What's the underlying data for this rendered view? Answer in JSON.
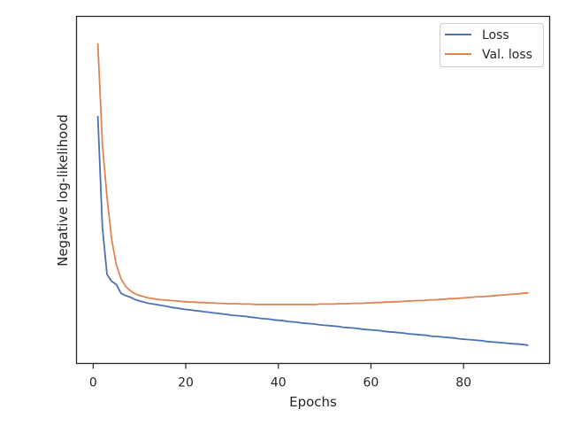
{
  "chart_data": {
    "type": "line",
    "title": "",
    "xlabel": "Epochs",
    "ylabel": "Negative log-likelihood",
    "xlim": [
      -3.6,
      98.6
    ],
    "ylim": [
      0.1,
      1.0
    ],
    "x_ticks": [
      0,
      20,
      40,
      60,
      80
    ],
    "y_ticks_shown": false,
    "grid": false,
    "legend_position": "top-right",
    "x": [
      1,
      2,
      3,
      4,
      5,
      6,
      7,
      8,
      9,
      10,
      11,
      12,
      13,
      14,
      15,
      16,
      17,
      18,
      19,
      20,
      21,
      22,
      23,
      24,
      25,
      26,
      27,
      28,
      29,
      30,
      31,
      32,
      33,
      34,
      35,
      36,
      37,
      38,
      39,
      40,
      41,
      42,
      43,
      44,
      45,
      46,
      47,
      48,
      49,
      50,
      51,
      52,
      53,
      54,
      55,
      56,
      57,
      58,
      59,
      60,
      61,
      62,
      63,
      64,
      65,
      66,
      67,
      68,
      69,
      70,
      71,
      72,
      73,
      74,
      75,
      76,
      77,
      78,
      79,
      80,
      81,
      82,
      83,
      84,
      85,
      86,
      87,
      88,
      89,
      90,
      91,
      92,
      93,
      94
    ],
    "series": [
      {
        "name": "Loss",
        "color": "#4c72b0",
        "values": [
          0.742,
          0.453,
          0.331,
          0.313,
          0.305,
          0.282,
          0.276,
          0.272,
          0.266,
          0.262,
          0.259,
          0.256,
          0.254,
          0.252,
          0.25,
          0.248,
          0.245,
          0.244,
          0.242,
          0.24,
          0.239,
          0.237,
          0.236,
          0.234,
          0.233,
          0.231,
          0.23,
          0.228,
          0.227,
          0.225,
          0.224,
          0.223,
          0.222,
          0.22,
          0.219,
          0.217,
          0.216,
          0.215,
          0.213,
          0.212,
          0.211,
          0.209,
          0.208,
          0.207,
          0.205,
          0.204,
          0.203,
          0.202,
          0.2,
          0.199,
          0.198,
          0.197,
          0.196,
          0.194,
          0.193,
          0.192,
          0.191,
          0.189,
          0.188,
          0.187,
          0.186,
          0.185,
          0.183,
          0.182,
          0.181,
          0.18,
          0.179,
          0.177,
          0.176,
          0.175,
          0.174,
          0.173,
          0.171,
          0.17,
          0.169,
          0.168,
          0.167,
          0.166,
          0.164,
          0.163,
          0.162,
          0.161,
          0.16,
          0.159,
          0.157,
          0.156,
          0.155,
          0.154,
          0.153,
          0.152,
          0.151,
          0.15,
          0.149,
          0.147
        ]
      },
      {
        "name": "Val. loss",
        "color": "#dd8452",
        "values": [
          0.93,
          0.668,
          0.531,
          0.421,
          0.356,
          0.32,
          0.3,
          0.289,
          0.281,
          0.276,
          0.273,
          0.27,
          0.268,
          0.266,
          0.265,
          0.264,
          0.263,
          0.262,
          0.261,
          0.26,
          0.259,
          0.259,
          0.258,
          0.258,
          0.257,
          0.257,
          0.256,
          0.256,
          0.255,
          0.255,
          0.255,
          0.254,
          0.254,
          0.254,
          0.253,
          0.253,
          0.253,
          0.253,
          0.253,
          0.253,
          0.253,
          0.253,
          0.253,
          0.253,
          0.253,
          0.253,
          0.253,
          0.253,
          0.254,
          0.254,
          0.254,
          0.254,
          0.255,
          0.255,
          0.255,
          0.256,
          0.256,
          0.256,
          0.257,
          0.257,
          0.258,
          0.258,
          0.259,
          0.259,
          0.26,
          0.26,
          0.261,
          0.262,
          0.262,
          0.263,
          0.263,
          0.264,
          0.265,
          0.265,
          0.266,
          0.267,
          0.268,
          0.268,
          0.269,
          0.27,
          0.271,
          0.272,
          0.273,
          0.273,
          0.274,
          0.275,
          0.276,
          0.277,
          0.278,
          0.279,
          0.28,
          0.281,
          0.282,
          0.283
        ]
      }
    ]
  }
}
